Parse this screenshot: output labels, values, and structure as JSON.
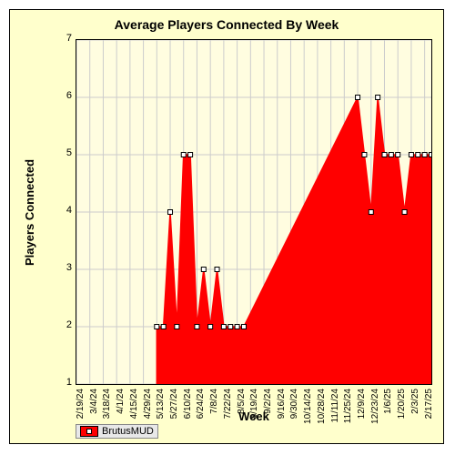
{
  "chart": {
    "type": "area",
    "title": "Average Players Connected By Week",
    "xlabel": "Week",
    "ylabel": "Players Connected",
    "title_fontsize": 14,
    "label_fontsize": 13,
    "tick_fontsize": 10,
    "background_color": "#ffffcc",
    "plot_background_color": "#fffde0",
    "grid_color": "#cccccc",
    "series_color": "#ff0000",
    "marker_fill": "#ffffff",
    "marker_border": "#000000",
    "marker_size": 5,
    "line_width": 1.5,
    "ylim": [
      1,
      7
    ],
    "yticks": [
      1,
      2,
      3,
      4,
      5,
      6,
      7
    ],
    "categories": [
      "2/19/24",
      "3/4/24",
      "3/18/24",
      "4/1/24",
      "4/15/24",
      "4/29/24",
      "5/13/24",
      "5/27/24",
      "6/10/24",
      "6/24/24",
      "7/8/24",
      "7/22/24",
      "8/5/24",
      "8/19/24",
      "9/2/24",
      "9/16/24",
      "9/30/24",
      "10/14/24",
      "10/28/24",
      "11/11/24",
      "11/25/24",
      "12/9/24",
      "12/23/24",
      "1/6/25",
      "1/20/25",
      "2/3/25",
      "2/17/25"
    ],
    "x_plot_count": 54,
    "points": [
      {
        "i": 12,
        "v": 2
      },
      {
        "i": 13,
        "v": 2
      },
      {
        "i": 14,
        "v": 4
      },
      {
        "i": 15,
        "v": 2
      },
      {
        "i": 16,
        "v": 5
      },
      {
        "i": 17,
        "v": 5
      },
      {
        "i": 18,
        "v": 2
      },
      {
        "i": 19,
        "v": 3
      },
      {
        "i": 20,
        "v": 2
      },
      {
        "i": 21,
        "v": 3
      },
      {
        "i": 22,
        "v": 2
      },
      {
        "i": 23,
        "v": 2
      },
      {
        "i": 24,
        "v": 2
      },
      {
        "i": 25,
        "v": 2
      },
      {
        "i": 42,
        "v": 6
      },
      {
        "i": 43,
        "v": 5
      },
      {
        "i": 44,
        "v": 4
      },
      {
        "i": 45,
        "v": 6
      },
      {
        "i": 46,
        "v": 5
      },
      {
        "i": 47,
        "v": 5
      },
      {
        "i": 48,
        "v": 5
      },
      {
        "i": 49,
        "v": 4
      },
      {
        "i": 50,
        "v": 5
      },
      {
        "i": 51,
        "v": 5
      },
      {
        "i": 52,
        "v": 5
      },
      {
        "i": 53,
        "v": 5
      }
    ],
    "legend": {
      "label": "BrutusMUD"
    }
  }
}
